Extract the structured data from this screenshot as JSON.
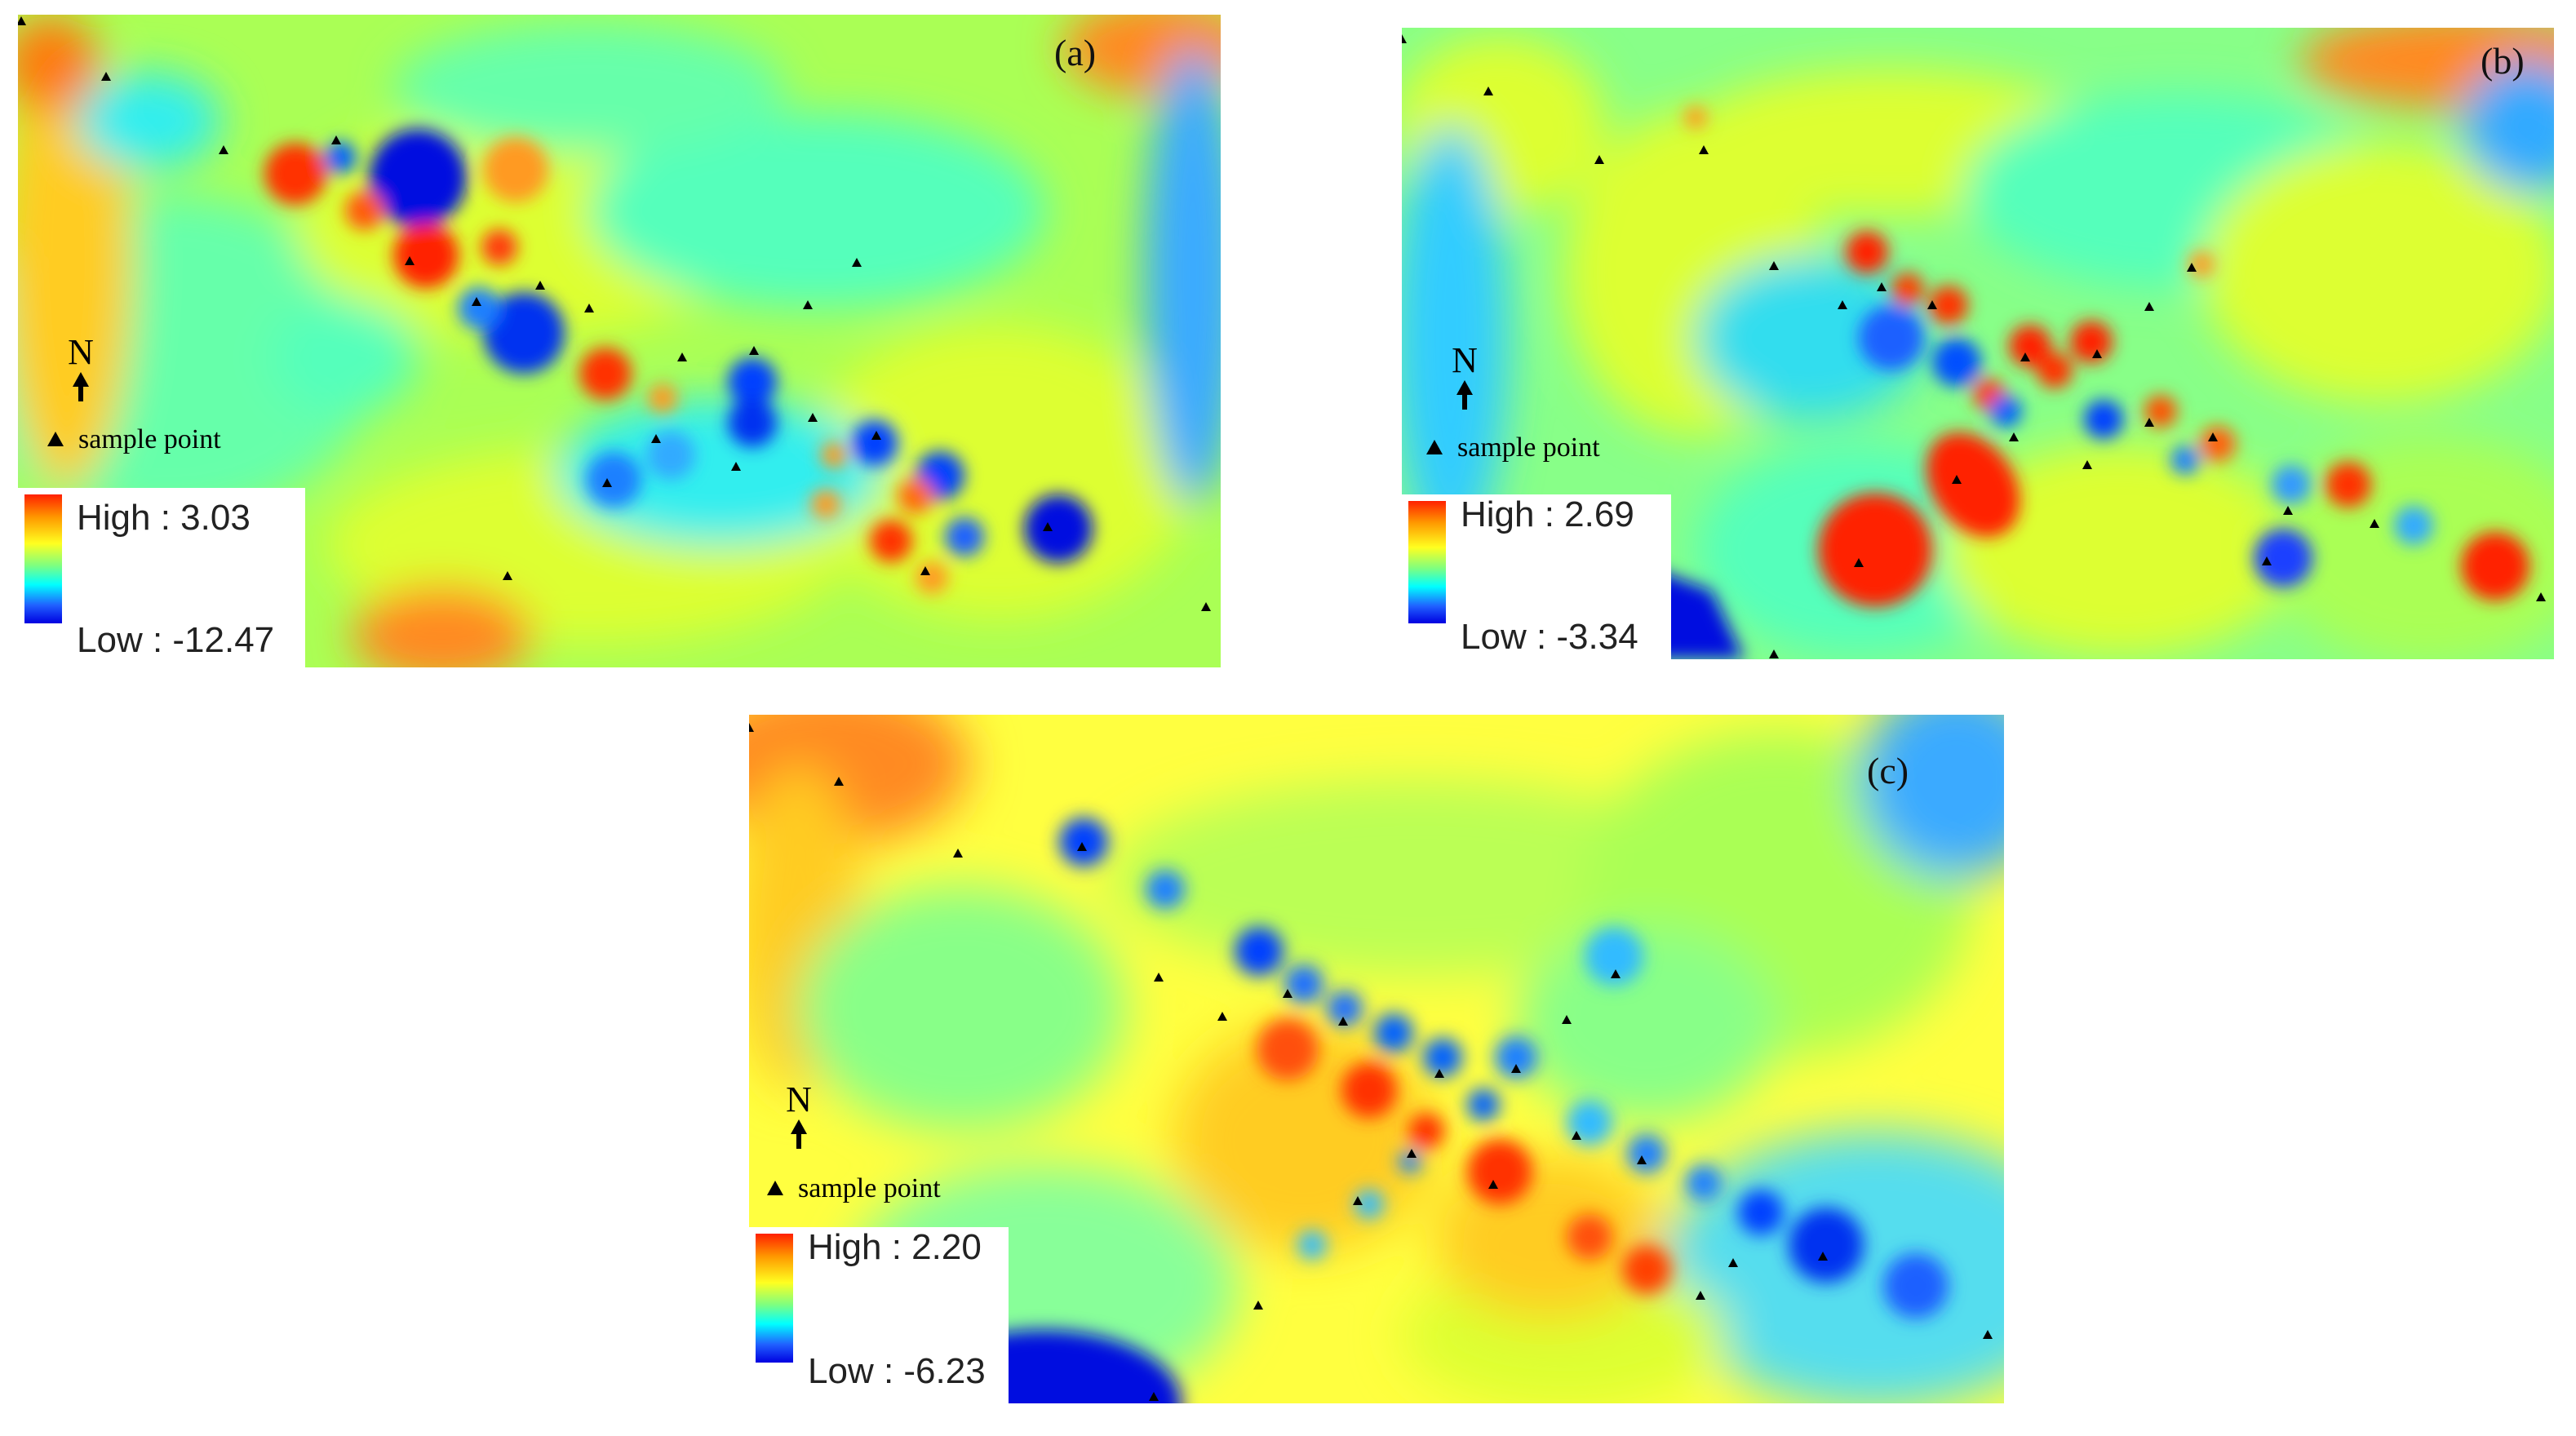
{
  "panels": [
    {
      "id": "a",
      "label": "(a)",
      "legend_high": "High : 3.03",
      "legend_low": "Low : -12.47",
      "north": "N",
      "sample_label": "sample point"
    },
    {
      "id": "b",
      "label": "(b)",
      "legend_high": "High : 2.69",
      "legend_low": "Low : -3.34",
      "north": "N",
      "sample_label": "sample point"
    },
    {
      "id": "c",
      "label": "(c)",
      "legend_high": "High : 2.20",
      "legend_low": "Low : -6.23",
      "north": "N",
      "sample_label": "sample point"
    }
  ],
  "colors": {
    "high": "#ff2000",
    "orange": "#ff9a00",
    "yellow": "#ffff20",
    "green": "#7fff7f",
    "cyan": "#00ffff",
    "blue": "#2060ff",
    "low": "#0000e0"
  }
}
